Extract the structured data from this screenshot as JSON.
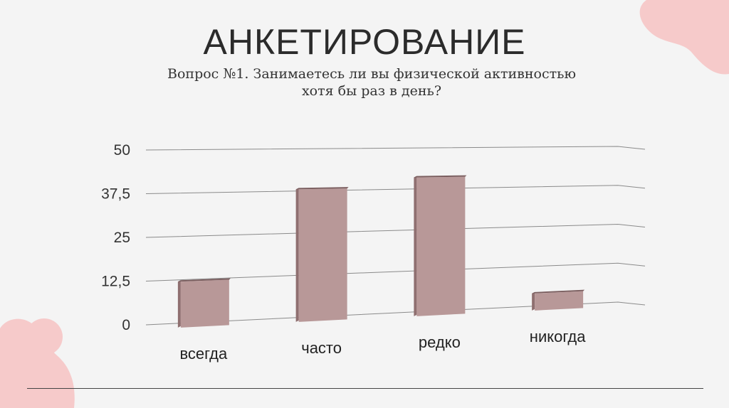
{
  "header": {
    "title": "АНКЕТИРОВАНИЕ",
    "subtitle_line1": "Вопрос №1. Занимаетесь ли вы физической активностью",
    "subtitle_line2": "хотя бы раз в день?"
  },
  "colors": {
    "bar_front": "#b89898",
    "bar_side": "#8f6f70",
    "bar_top": "#7a5d5e",
    "blob": "#f6caca",
    "grid": "#8a8a8a"
  },
  "chart_data": {
    "type": "bar",
    "categories": [
      "всегда",
      "часто",
      "редко",
      "никогда"
    ],
    "values": [
      12,
      38,
      41,
      4
    ],
    "ylim": [
      0,
      50
    ],
    "yticks": [
      "0",
      "12,5",
      "25",
      "37,5",
      "50"
    ],
    "grid": true
  }
}
